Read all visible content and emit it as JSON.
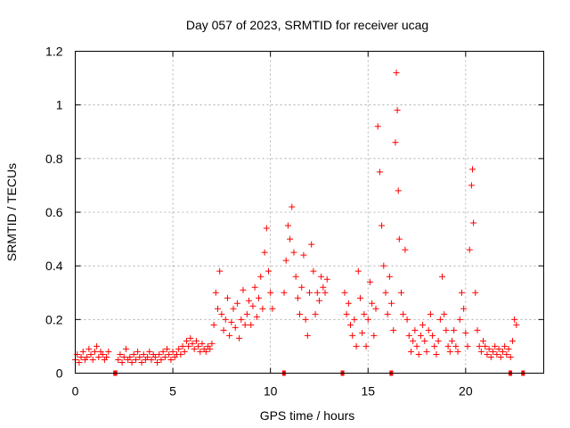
{
  "chart_data": {
    "type": "scatter",
    "title": "Day 057 of 2023, SRMTID for receiver ucag",
    "xlabel": "GPS time / hours",
    "ylabel": "SRMTID / TECUs",
    "xlim": [
      0,
      24
    ],
    "ylim": [
      0,
      1.2
    ],
    "xticks": [
      0,
      5,
      10,
      15,
      20
    ],
    "xtick_labels": [
      "0",
      "5",
      "10",
      "15",
      "20"
    ],
    "yticks": [
      0,
      0.2,
      0.4,
      0.6,
      0.8,
      1.0,
      1.2
    ],
    "ytick_labels": [
      "0",
      "0.2",
      "0.4",
      "0.6",
      "0.8",
      "1",
      "1.2"
    ],
    "grid": true,
    "marker": "+",
    "color": "#ff0000",
    "series": [
      {
        "name": "SRMTID",
        "points": [
          [
            0.0,
            0.05
          ],
          [
            0.1,
            0.07
          ],
          [
            0.2,
            0.04
          ],
          [
            0.3,
            0.06
          ],
          [
            0.4,
            0.08
          ],
          [
            0.5,
            0.05
          ],
          [
            0.6,
            0.06
          ],
          [
            0.7,
            0.09
          ],
          [
            0.8,
            0.07
          ],
          [
            0.9,
            0.05
          ],
          [
            1.0,
            0.08
          ],
          [
            1.1,
            0.1
          ],
          [
            1.2,
            0.06
          ],
          [
            1.3,
            0.08
          ],
          [
            1.4,
            0.07
          ],
          [
            1.5,
            0.05
          ],
          [
            1.6,
            0.06
          ],
          [
            1.7,
            0.08
          ],
          [
            2.2,
            0.05
          ],
          [
            2.3,
            0.07
          ],
          [
            2.4,
            0.04
          ],
          [
            2.5,
            0.06
          ],
          [
            2.6,
            0.09
          ],
          [
            2.7,
            0.05
          ],
          [
            2.8,
            0.06
          ],
          [
            2.9,
            0.04
          ],
          [
            3.0,
            0.07
          ],
          [
            3.1,
            0.05
          ],
          [
            3.2,
            0.08
          ],
          [
            3.3,
            0.06
          ],
          [
            3.4,
            0.04
          ],
          [
            3.5,
            0.07
          ],
          [
            3.6,
            0.05
          ],
          [
            3.7,
            0.06
          ],
          [
            3.8,
            0.08
          ],
          [
            3.9,
            0.05
          ],
          [
            4.0,
            0.07
          ],
          [
            4.1,
            0.06
          ],
          [
            4.2,
            0.04
          ],
          [
            4.3,
            0.07
          ],
          [
            4.4,
            0.05
          ],
          [
            4.5,
            0.08
          ],
          [
            4.6,
            0.06
          ],
          [
            4.7,
            0.09
          ],
          [
            4.8,
            0.07
          ],
          [
            4.9,
            0.05
          ],
          [
            5.0,
            0.08
          ],
          [
            5.1,
            0.06
          ],
          [
            5.2,
            0.07
          ],
          [
            5.3,
            0.09
          ],
          [
            5.4,
            0.07
          ],
          [
            5.5,
            0.1
          ],
          [
            5.6,
            0.08
          ],
          [
            5.7,
            0.12
          ],
          [
            5.8,
            0.1
          ],
          [
            5.9,
            0.13
          ],
          [
            6.0,
            0.11
          ],
          [
            6.1,
            0.09
          ],
          [
            6.2,
            0.12
          ],
          [
            6.3,
            0.1
          ],
          [
            6.4,
            0.08
          ],
          [
            6.5,
            0.11
          ],
          [
            6.6,
            0.09
          ],
          [
            6.7,
            0.08
          ],
          [
            6.8,
            0.1
          ],
          [
            6.9,
            0.09
          ],
          [
            7.0,
            0.11
          ],
          [
            7.1,
            0.18
          ],
          [
            7.2,
            0.3
          ],
          [
            7.3,
            0.24
          ],
          [
            7.4,
            0.38
          ],
          [
            7.5,
            0.22
          ],
          [
            7.6,
            0.16
          ],
          [
            7.7,
            0.2
          ],
          [
            7.8,
            0.28
          ],
          [
            7.9,
            0.14
          ],
          [
            8.0,
            0.19
          ],
          [
            8.1,
            0.24
          ],
          [
            8.2,
            0.17
          ],
          [
            8.3,
            0.26
          ],
          [
            8.4,
            0.13
          ],
          [
            8.5,
            0.2
          ],
          [
            8.6,
            0.31
          ],
          [
            8.7,
            0.18
          ],
          [
            8.8,
            0.22
          ],
          [
            8.9,
            0.27
          ],
          [
            9.0,
            0.18
          ],
          [
            9.1,
            0.25
          ],
          [
            9.2,
            0.32
          ],
          [
            9.3,
            0.21
          ],
          [
            9.4,
            0.28
          ],
          [
            9.5,
            0.36
          ],
          [
            9.6,
            0.24
          ],
          [
            9.7,
            0.45
          ],
          [
            9.8,
            0.54
          ],
          [
            9.9,
            0.38
          ],
          [
            10.0,
            0.3
          ],
          [
            10.1,
            0.24
          ],
          [
            10.7,
            0.3
          ],
          [
            10.8,
            0.42
          ],
          [
            10.9,
            0.55
          ],
          [
            11.0,
            0.5
          ],
          [
            11.1,
            0.62
          ],
          [
            11.2,
            0.45
          ],
          [
            11.3,
            0.36
          ],
          [
            11.4,
            0.28
          ],
          [
            11.5,
            0.22
          ],
          [
            11.6,
            0.32
          ],
          [
            11.7,
            0.44
          ],
          [
            11.8,
            0.2
          ],
          [
            11.9,
            0.14
          ],
          [
            12.0,
            0.3
          ],
          [
            12.1,
            0.48
          ],
          [
            12.2,
            0.38
          ],
          [
            12.3,
            0.22
          ],
          [
            12.4,
            0.3
          ],
          [
            12.5,
            0.27
          ],
          [
            12.6,
            0.36
          ],
          [
            12.7,
            0.32
          ],
          [
            12.8,
            0.3
          ],
          [
            12.9,
            0.35
          ],
          [
            13.8,
            0.3
          ],
          [
            13.9,
            0.22
          ],
          [
            14.0,
            0.26
          ],
          [
            14.1,
            0.18
          ],
          [
            14.2,
            0.14
          ],
          [
            14.3,
            0.2
          ],
          [
            14.4,
            0.1
          ],
          [
            14.5,
            0.38
          ],
          [
            14.6,
            0.28
          ],
          [
            14.7,
            0.15
          ],
          [
            14.8,
            0.22
          ],
          [
            14.9,
            0.1
          ],
          [
            15.0,
            0.2
          ],
          [
            15.1,
            0.34
          ],
          [
            15.2,
            0.26
          ],
          [
            15.3,
            0.14
          ],
          [
            15.4,
            0.24
          ],
          [
            15.5,
            0.92
          ],
          [
            15.6,
            0.75
          ],
          [
            15.7,
            0.55
          ],
          [
            15.8,
            0.4
          ],
          [
            15.9,
            0.3
          ],
          [
            16.0,
            0.22
          ],
          [
            16.1,
            0.36
          ],
          [
            16.2,
            0.26
          ],
          [
            16.3,
            0.16
          ],
          [
            16.4,
            0.86
          ],
          [
            16.45,
            1.12
          ],
          [
            16.5,
            0.98
          ],
          [
            16.55,
            0.68
          ],
          [
            16.6,
            0.5
          ],
          [
            16.7,
            0.3
          ],
          [
            16.8,
            0.22
          ],
          [
            16.9,
            0.46
          ],
          [
            17.0,
            0.2
          ],
          [
            17.1,
            0.14
          ],
          [
            17.2,
            0.08
          ],
          [
            17.3,
            0.12
          ],
          [
            17.4,
            0.16
          ],
          [
            17.5,
            0.1
          ],
          [
            17.6,
            0.07
          ],
          [
            17.7,
            0.14
          ],
          [
            17.8,
            0.18
          ],
          [
            17.9,
            0.12
          ],
          [
            18.0,
            0.08
          ],
          [
            18.1,
            0.16
          ],
          [
            18.2,
            0.22
          ],
          [
            18.3,
            0.14
          ],
          [
            18.4,
            0.1
          ],
          [
            18.5,
            0.07
          ],
          [
            18.6,
            0.12
          ],
          [
            18.7,
            0.2
          ],
          [
            18.8,
            0.36
          ],
          [
            18.9,
            0.22
          ],
          [
            19.0,
            0.16
          ],
          [
            19.1,
            0.1
          ],
          [
            19.2,
            0.08
          ],
          [
            19.3,
            0.12
          ],
          [
            19.4,
            0.16
          ],
          [
            19.5,
            0.1
          ],
          [
            19.6,
            0.08
          ],
          [
            19.7,
            0.2
          ],
          [
            19.8,
            0.3
          ],
          [
            19.9,
            0.24
          ],
          [
            20.0,
            0.15
          ],
          [
            20.1,
            0.1
          ],
          [
            20.2,
            0.46
          ],
          [
            20.3,
            0.7
          ],
          [
            20.35,
            0.76
          ],
          [
            20.4,
            0.56
          ],
          [
            20.5,
            0.3
          ],
          [
            20.6,
            0.16
          ],
          [
            20.7,
            0.1
          ],
          [
            20.8,
            0.08
          ],
          [
            20.9,
            0.12
          ],
          [
            21.0,
            0.1
          ],
          [
            21.1,
            0.07
          ],
          [
            21.2,
            0.09
          ],
          [
            21.3,
            0.06
          ],
          [
            21.4,
            0.08
          ],
          [
            21.5,
            0.1
          ],
          [
            21.6,
            0.07
          ],
          [
            21.7,
            0.09
          ],
          [
            21.8,
            0.06
          ],
          [
            21.9,
            0.08
          ],
          [
            22.0,
            0.1
          ],
          [
            22.1,
            0.07
          ],
          [
            22.2,
            0.09
          ],
          [
            22.3,
            0.06
          ],
          [
            22.4,
            0.12
          ],
          [
            22.5,
            0.2
          ],
          [
            22.6,
            0.18
          ]
        ]
      }
    ],
    "gaps": [
      {
        "x_start": 1.95,
        "x_end": 2.15,
        "y": 0
      },
      {
        "x_start": 10.6,
        "x_end": 10.7,
        "y": 0
      },
      {
        "x_start": 13.6,
        "x_end": 13.7,
        "y": 0
      },
      {
        "x_start": 16.1,
        "x_end": 16.2,
        "y": 0
      },
      {
        "x_start": 22.2,
        "x_end": 22.3,
        "y": 0
      },
      {
        "x_start": 22.85,
        "x_end": 22.95,
        "y": 0
      }
    ]
  }
}
